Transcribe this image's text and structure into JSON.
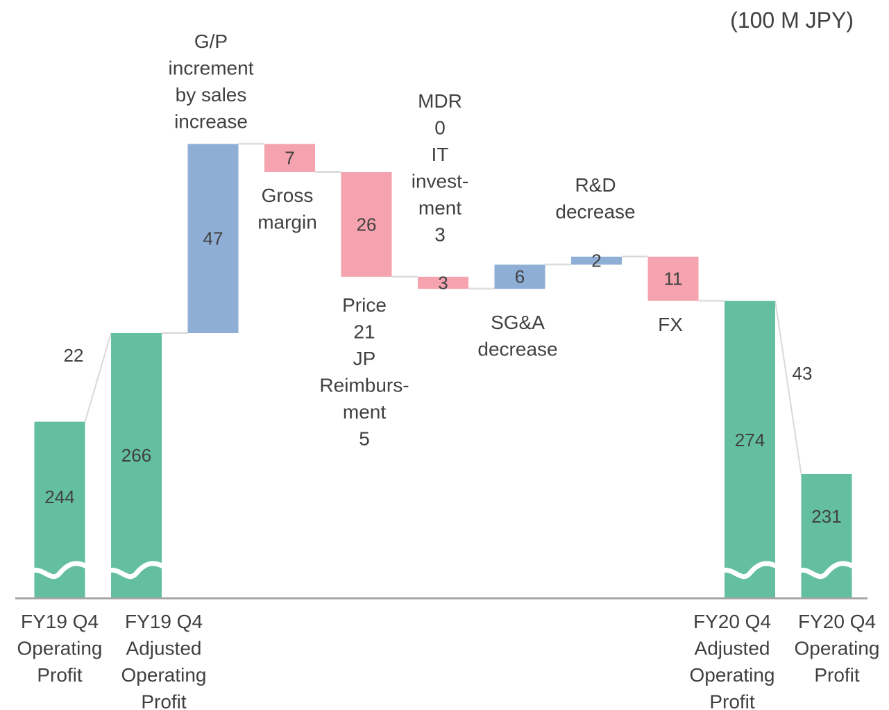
{
  "unit_label": "(100 M JPY)",
  "colors": {
    "total": "#63bfa0",
    "increase": "#8faed6",
    "decrease": "#f5a3ae",
    "axis": "#a6a6a6",
    "connector": "#d9d9d9",
    "text": "#404040"
  },
  "chart_data": {
    "type": "bar",
    "subtype": "waterfall",
    "axis_break": true,
    "categories": [
      "FY19 Q4 Operating Profit",
      "FY19 Q4 Adjusted Operating Profit",
      "G/P increment by sales increase",
      "Gross margin",
      "Price / JP Reimbursment",
      "MDR / IT investment",
      "SG&A decrease",
      "R&D decrease",
      "FX",
      "FY20 Q4 Adjusted Operating Profit",
      "FY20 Q4 Operating Profit"
    ],
    "bars": [
      {
        "kind": "total",
        "value": 244,
        "label": "244"
      },
      {
        "kind": "total",
        "value": 266,
        "label": "266"
      },
      {
        "kind": "increase",
        "value": 47,
        "label": "47"
      },
      {
        "kind": "decrease",
        "value": -7,
        "label": "7"
      },
      {
        "kind": "decrease",
        "value": -26,
        "label": "26"
      },
      {
        "kind": "decrease",
        "value": -3,
        "label": "3"
      },
      {
        "kind": "increase",
        "value": 6,
        "label": "6"
      },
      {
        "kind": "increase",
        "value": 2,
        "label": "2"
      },
      {
        "kind": "decrease",
        "value": -11,
        "label": "11"
      },
      {
        "kind": "total",
        "value": 274,
        "label": "274"
      },
      {
        "kind": "total",
        "value": 231,
        "label": "231"
      }
    ],
    "adjustments": [
      {
        "between": [
          "FY19 Q4 Operating Profit",
          "FY19 Q4 Adjusted Operating Profit"
        ],
        "value": 22,
        "label": "22"
      },
      {
        "between": [
          "FY20 Q4 Adjusted Operating Profit",
          "FY20 Q4 Operating Profit"
        ],
        "value": 43,
        "label": "43"
      }
    ],
    "category_labels": [
      [
        "FY19 Q4",
        "Operating",
        "Profit"
      ],
      [
        "FY19 Q4",
        "Adjusted",
        "Operating",
        "Profit"
      ],
      [],
      [],
      [],
      [],
      [],
      [],
      [],
      [
        "FY20 Q4",
        "Adjusted",
        "Operating",
        "Profit"
      ],
      [
        "FY20 Q4",
        "Operating",
        "Profit"
      ]
    ],
    "annotations": [
      {
        "bar": 2,
        "lines": [
          "G/P",
          "increment",
          "by sales",
          "increase"
        ],
        "position": "above"
      },
      {
        "bar": 3,
        "lines": [
          "Gross",
          "margin"
        ],
        "position": "below"
      },
      {
        "bar": 4,
        "lines": [
          "Price",
          "21",
          "JP",
          "Reimburs-",
          "ment",
          "5"
        ],
        "position": "below"
      },
      {
        "bar": 5,
        "lines": [
          "MDR",
          "0",
          "IT",
          "invest-",
          "ment",
          "3"
        ],
        "position": "above"
      },
      {
        "bar": 6,
        "lines": [
          "SG&A",
          "decrease"
        ],
        "position": "below"
      },
      {
        "bar": 7,
        "lines": [
          "R&D",
          "decrease"
        ],
        "position": "above"
      },
      {
        "bar": 8,
        "lines": [
          "FX"
        ],
        "position": "below"
      }
    ]
  }
}
